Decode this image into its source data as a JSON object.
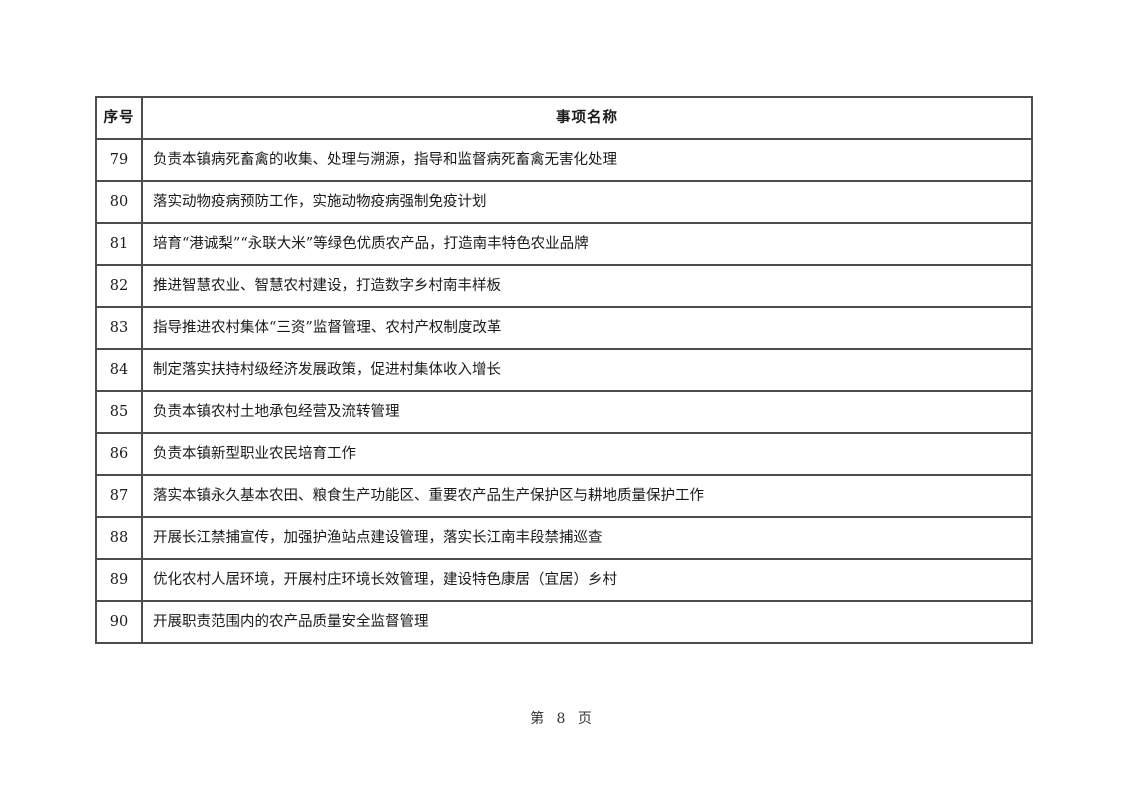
{
  "table": {
    "headers": {
      "index": "序号",
      "name": "事项名称"
    },
    "rows": [
      {
        "no": "79",
        "name": "负责本镇病死畜禽的收集、处理与溯源，指导和监督病死畜禽无害化处理"
      },
      {
        "no": "80",
        "name": "落实动物疫病预防工作，实施动物疫病强制免疫计划"
      },
      {
        "no": "81",
        "name": "培育“港诚梨”“永联大米”等绿色优质农产品，打造南丰特色农业品牌"
      },
      {
        "no": "82",
        "name": "推进智慧农业、智慧农村建设，打造数字乡村南丰样板"
      },
      {
        "no": "83",
        "name": "指导推进农村集体“三资”监督管理、农村产权制度改革"
      },
      {
        "no": "84",
        "name": "制定落实扶持村级经济发展政策，促进村集体收入增长"
      },
      {
        "no": "85",
        "name": "负责本镇农村土地承包经营及流转管理"
      },
      {
        "no": "86",
        "name": "负责本镇新型职业农民培育工作"
      },
      {
        "no": "87",
        "name": "落实本镇永久基本农田、粮食生产功能区、重要农产品生产保护区与耕地质量保护工作"
      },
      {
        "no": "88",
        "name": "开展长江禁捕宣传，加强护渔站点建设管理，落实长江南丰段禁捕巡查"
      },
      {
        "no": "89",
        "name": "优化农村人居环境，开展村庄环境长效管理，建设特色康居（宜居）乡村"
      },
      {
        "no": "90",
        "name": "开展职责范围内的农产品质量安全监督管理"
      }
    ]
  },
  "footer": {
    "prefix": "第",
    "page_number": "8",
    "suffix": "页"
  }
}
